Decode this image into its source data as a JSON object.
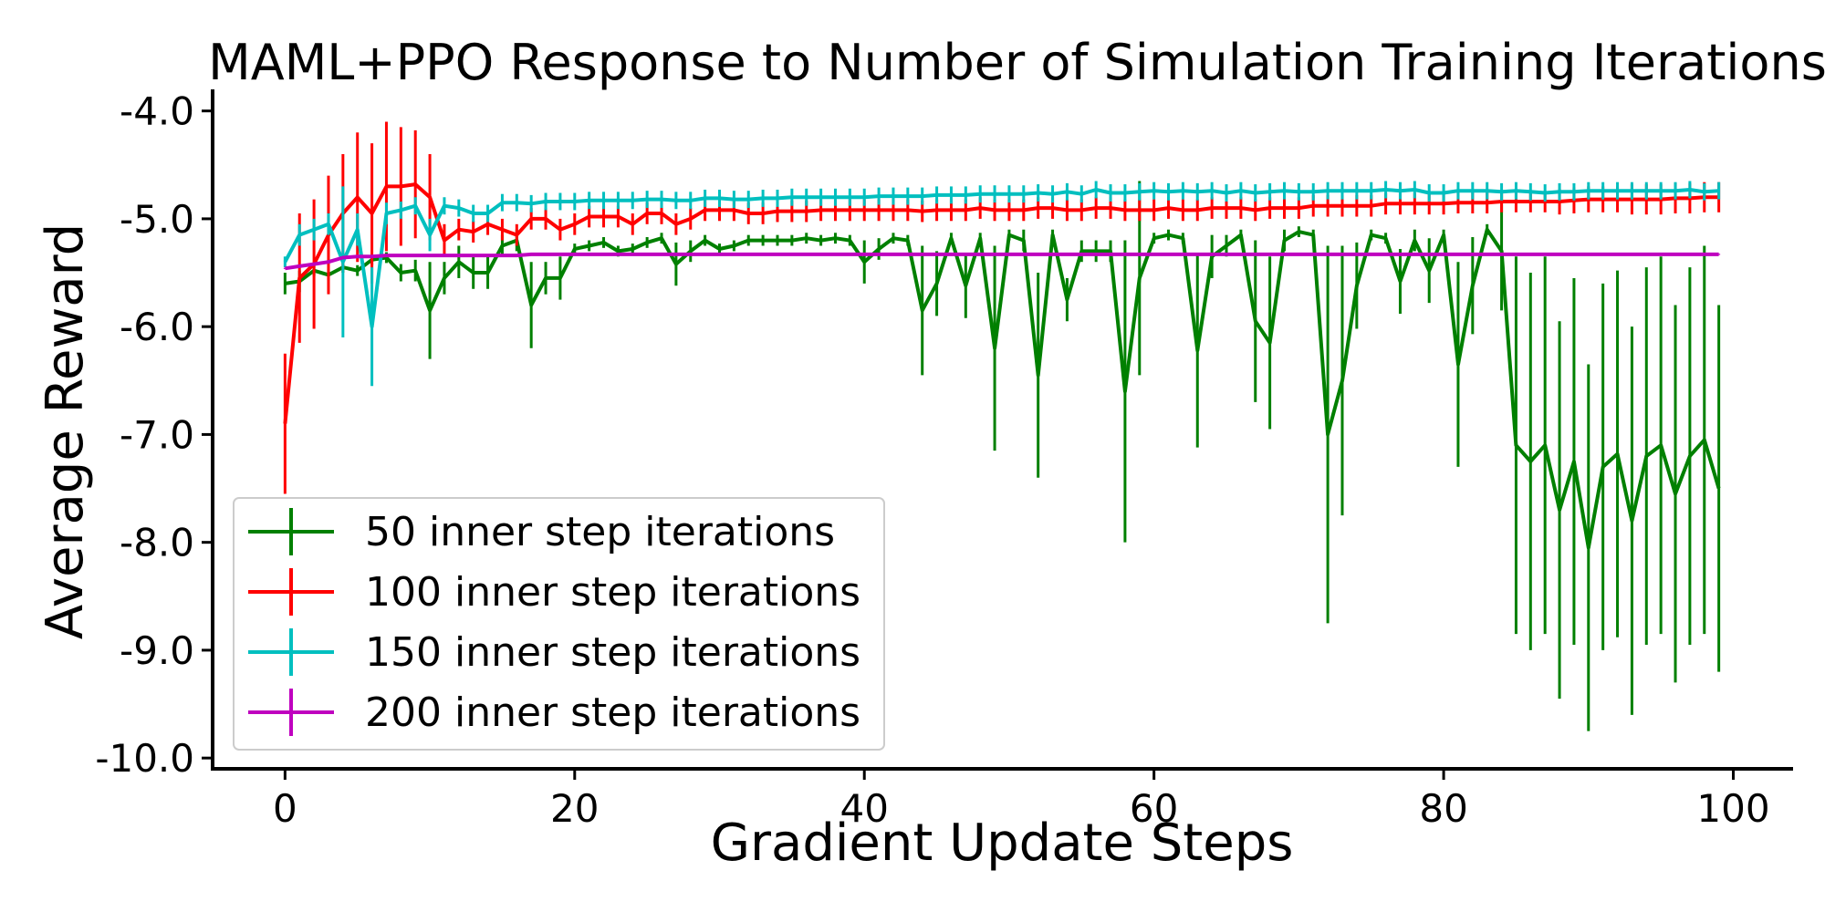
{
  "chart_data": {
    "type": "line",
    "title": "MAML+PPO Response to Number of Simulation Training Iterations",
    "xlabel": "Gradient Update Steps",
    "ylabel": "Average Reward",
    "xlim": [
      -5,
      104
    ],
    "ylim": [
      -10.1,
      -3.8
    ],
    "xticks": [
      0,
      20,
      40,
      60,
      80,
      100
    ],
    "xtick_labels": [
      "0",
      "20",
      "40",
      "60",
      "80",
      "100"
    ],
    "yticks": [
      -4.0,
      -5.0,
      -6.0,
      -7.0,
      -8.0,
      -9.0,
      -10.0
    ],
    "ytick_labels": [
      "-4.0",
      "-5.0",
      "-6.0",
      "-7.0",
      "-8.0",
      "-9.0",
      "-10.0"
    ],
    "legend_position": "lower-left",
    "series": [
      {
        "name": "50 inner step iterations",
        "color": "#008000",
        "values": [
          -5.6,
          -5.58,
          -5.48,
          -5.52,
          -5.45,
          -5.48,
          -5.38,
          -5.36,
          -5.5,
          -5.48,
          -5.85,
          -5.55,
          -5.4,
          -5.5,
          -5.5,
          -5.25,
          -5.2,
          -5.8,
          -5.55,
          -5.55,
          -5.28,
          -5.25,
          -5.22,
          -5.3,
          -5.28,
          -5.22,
          -5.18,
          -5.42,
          -5.3,
          -5.2,
          -5.28,
          -5.25,
          -5.2,
          -5.2,
          -5.2,
          -5.2,
          -5.18,
          -5.2,
          -5.18,
          -5.2,
          -5.4,
          -5.28,
          -5.18,
          -5.2,
          -5.85,
          -5.6,
          -5.18,
          -5.62,
          -5.18,
          -6.2,
          -5.15,
          -5.2,
          -6.45,
          -5.15,
          -5.75,
          -5.3,
          -5.3,
          -5.3,
          -6.6,
          -5.55,
          -5.18,
          -5.15,
          -5.18,
          -6.22,
          -5.35,
          -5.25,
          -5.15,
          -5.95,
          -6.15,
          -5.2,
          -5.12,
          -5.15,
          -7.0,
          -6.5,
          -5.62,
          -5.15,
          -5.18,
          -5.58,
          -5.2,
          -5.48,
          -5.15,
          -6.35,
          -5.62,
          -5.1,
          -5.3,
          -7.1,
          -7.25,
          -7.1,
          -7.7,
          -7.25,
          -8.05,
          -7.3,
          -7.18,
          -7.8,
          -7.2,
          -7.1,
          -7.55,
          -7.2,
          -7.05,
          -7.5
        ],
        "errors": [
          0.1,
          0.1,
          0.05,
          0.05,
          0.05,
          0.05,
          0.05,
          0.05,
          0.08,
          0.1,
          0.45,
          0.15,
          0.15,
          0.15,
          0.15,
          0.1,
          0.1,
          0.4,
          0.15,
          0.2,
          0.05,
          0.05,
          0.05,
          0.05,
          0.05,
          0.05,
          0.05,
          0.2,
          0.1,
          0.05,
          0.05,
          0.05,
          0.05,
          0.05,
          0.05,
          0.05,
          0.05,
          0.05,
          0.05,
          0.05,
          0.2,
          0.1,
          0.05,
          0.05,
          0.6,
          0.3,
          0.05,
          0.3,
          0.05,
          0.95,
          0.05,
          0.1,
          0.95,
          0.05,
          0.2,
          0.1,
          0.1,
          0.1,
          1.4,
          0.9,
          0.05,
          0.05,
          0.05,
          0.9,
          0.2,
          0.1,
          0.05,
          0.75,
          0.8,
          0.1,
          0.05,
          0.05,
          1.75,
          1.25,
          0.4,
          0.05,
          0.05,
          0.3,
          0.1,
          0.3,
          0.05,
          0.95,
          0.45,
          0.05,
          0.55,
          1.75,
          1.75,
          1.75,
          1.75,
          1.7,
          1.7,
          1.7,
          1.7,
          1.8,
          1.75,
          1.75,
          1.75,
          1.75,
          1.8,
          1.7
        ]
      },
      {
        "name": "100 inner step iterations",
        "color": "#ff0000",
        "values": [
          -6.9,
          -5.55,
          -5.42,
          -5.15,
          -4.95,
          -4.8,
          -4.95,
          -4.7,
          -4.7,
          -4.68,
          -4.8,
          -5.2,
          -5.1,
          -5.12,
          -5.05,
          -5.1,
          -5.15,
          -5.0,
          -5.0,
          -5.1,
          -5.05,
          -4.98,
          -4.98,
          -4.98,
          -5.05,
          -4.95,
          -4.95,
          -5.05,
          -5.0,
          -4.92,
          -4.92,
          -4.92,
          -4.95,
          -4.95,
          -4.93,
          -4.93,
          -4.93,
          -4.92,
          -4.92,
          -4.92,
          -4.92,
          -4.92,
          -4.92,
          -4.92,
          -4.93,
          -4.92,
          -4.92,
          -4.92,
          -4.9,
          -4.92,
          -4.92,
          -4.92,
          -4.9,
          -4.9,
          -4.92,
          -4.92,
          -4.9,
          -4.9,
          -4.92,
          -4.92,
          -4.92,
          -4.9,
          -4.92,
          -4.92,
          -4.9,
          -4.9,
          -4.9,
          -4.92,
          -4.9,
          -4.9,
          -4.9,
          -4.88,
          -4.88,
          -4.88,
          -4.88,
          -4.88,
          -4.86,
          -4.86,
          -4.86,
          -4.86,
          -4.86,
          -4.85,
          -4.85,
          -4.85,
          -4.84,
          -4.84,
          -4.84,
          -4.84,
          -4.84,
          -4.83,
          -4.82,
          -4.82,
          -4.82,
          -4.82,
          -4.82,
          -4.82,
          -4.81,
          -4.81,
          -4.8,
          -4.8
        ],
        "errors": [
          0.65,
          0.6,
          0.6,
          0.55,
          0.55,
          0.6,
          0.65,
          0.6,
          0.55,
          0.5,
          0.4,
          0.15,
          0.1,
          0.1,
          0.1,
          0.1,
          0.1,
          0.1,
          0.1,
          0.1,
          0.1,
          0.1,
          0.1,
          0.1,
          0.1,
          0.1,
          0.1,
          0.1,
          0.1,
          0.1,
          0.1,
          0.1,
          0.1,
          0.1,
          0.1,
          0.1,
          0.1,
          0.1,
          0.1,
          0.1,
          0.1,
          0.1,
          0.1,
          0.1,
          0.1,
          0.1,
          0.1,
          0.1,
          0.1,
          0.1,
          0.1,
          0.1,
          0.1,
          0.1,
          0.1,
          0.1,
          0.1,
          0.1,
          0.1,
          0.1,
          0.1,
          0.1,
          0.1,
          0.1,
          0.1,
          0.1,
          0.1,
          0.1,
          0.1,
          0.1,
          0.1,
          0.1,
          0.1,
          0.1,
          0.1,
          0.1,
          0.1,
          0.1,
          0.1,
          0.1,
          0.1,
          0.1,
          0.1,
          0.1,
          0.1,
          0.1,
          0.1,
          0.1,
          0.12,
          0.12,
          0.12,
          0.12,
          0.12,
          0.14,
          0.14,
          0.14,
          0.14,
          0.14,
          0.14,
          0.14
        ]
      },
      {
        "name": "150 inner step iterations",
        "color": "#00bfbf",
        "values": [
          -5.4,
          -5.15,
          -5.1,
          -5.05,
          -5.4,
          -5.1,
          -6.0,
          -4.95,
          -4.92,
          -4.88,
          -5.15,
          -4.88,
          -4.9,
          -4.95,
          -4.95,
          -4.85,
          -4.85,
          -4.86,
          -4.84,
          -4.84,
          -4.84,
          -4.83,
          -4.83,
          -4.83,
          -4.83,
          -4.82,
          -4.82,
          -4.83,
          -4.83,
          -4.81,
          -4.81,
          -4.82,
          -4.82,
          -4.81,
          -4.81,
          -4.8,
          -4.8,
          -4.8,
          -4.8,
          -4.8,
          -4.8,
          -4.79,
          -4.79,
          -4.79,
          -4.79,
          -4.78,
          -4.78,
          -4.78,
          -4.77,
          -4.77,
          -4.77,
          -4.77,
          -4.76,
          -4.77,
          -4.75,
          -4.77,
          -4.73,
          -4.76,
          -4.76,
          -4.75,
          -4.74,
          -4.75,
          -4.74,
          -4.75,
          -4.74,
          -4.76,
          -4.74,
          -4.76,
          -4.75,
          -4.74,
          -4.75,
          -4.75,
          -4.74,
          -4.74,
          -4.74,
          -4.74,
          -4.73,
          -4.74,
          -4.73,
          -4.76,
          -4.76,
          -4.74,
          -4.74,
          -4.74,
          -4.75,
          -4.74,
          -4.75,
          -4.76,
          -4.75,
          -4.75,
          -4.74,
          -4.74,
          -4.74,
          -4.74,
          -4.74,
          -4.74,
          -4.74,
          -4.73,
          -4.75,
          -4.74
        ],
        "errors": [
          0.05,
          0.1,
          0.1,
          0.1,
          0.7,
          0.15,
          0.55,
          0.1,
          0.08,
          0.08,
          0.15,
          0.08,
          0.08,
          0.08,
          0.08,
          0.08,
          0.08,
          0.08,
          0.08,
          0.08,
          0.08,
          0.08,
          0.08,
          0.08,
          0.08,
          0.08,
          0.08,
          0.08,
          0.08,
          0.08,
          0.08,
          0.08,
          0.08,
          0.08,
          0.08,
          0.08,
          0.08,
          0.08,
          0.08,
          0.08,
          0.08,
          0.08,
          0.08,
          0.08,
          0.08,
          0.08,
          0.08,
          0.08,
          0.08,
          0.08,
          0.08,
          0.08,
          0.08,
          0.08,
          0.08,
          0.08,
          0.08,
          0.08,
          0.08,
          0.08,
          0.08,
          0.08,
          0.08,
          0.08,
          0.08,
          0.08,
          0.08,
          0.08,
          0.08,
          0.08,
          0.08,
          0.08,
          0.08,
          0.08,
          0.08,
          0.08,
          0.08,
          0.08,
          0.08,
          0.08,
          0.08,
          0.08,
          0.08,
          0.08,
          0.08,
          0.08,
          0.08,
          0.08,
          0.08,
          0.08,
          0.08,
          0.08,
          0.08,
          0.08,
          0.08,
          0.08,
          0.08,
          0.08,
          0.08,
          0.08
        ]
      },
      {
        "name": "200 inner step iterations",
        "color": "#bf00bf",
        "values": [
          -5.46,
          -5.44,
          -5.42,
          -5.4,
          -5.36,
          -5.35,
          -5.35,
          -5.34,
          -5.34,
          -5.34,
          -5.34,
          -5.34,
          -5.34,
          -5.34,
          -5.34,
          -5.34,
          -5.34,
          -5.33,
          -5.33,
          -5.33,
          -5.33,
          -5.33,
          -5.33,
          -5.33,
          -5.33,
          -5.33,
          -5.33,
          -5.33,
          -5.33,
          -5.33,
          -5.33,
          -5.33,
          -5.33,
          -5.33,
          -5.33,
          -5.33,
          -5.33,
          -5.33,
          -5.33,
          -5.33,
          -5.33,
          -5.33,
          -5.33,
          -5.33,
          -5.33,
          -5.33,
          -5.33,
          -5.33,
          -5.33,
          -5.33,
          -5.33,
          -5.33,
          -5.33,
          -5.33,
          -5.33,
          -5.33,
          -5.33,
          -5.33,
          -5.33,
          -5.33,
          -5.33,
          -5.33,
          -5.33,
          -5.33,
          -5.33,
          -5.33,
          -5.33,
          -5.33,
          -5.33,
          -5.33,
          -5.33,
          -5.33,
          -5.33,
          -5.33,
          -5.33,
          -5.33,
          -5.33,
          -5.33,
          -5.33,
          -5.33,
          -5.33,
          -5.33,
          -5.33,
          -5.33,
          -5.33,
          -5.33,
          -5.33,
          -5.33,
          -5.33,
          -5.33,
          -5.33,
          -5.33,
          -5.33,
          -5.33,
          -5.33,
          -5.33,
          -5.33,
          -5.33,
          -5.33,
          -5.33
        ],
        "errors": [
          0.005,
          0.005,
          0.005,
          0.005,
          0.005,
          0.005,
          0.005,
          0.005,
          0.005,
          0.005,
          0.005,
          0.005,
          0.005,
          0.005,
          0.005,
          0.005,
          0.005,
          0.005,
          0.005,
          0.005,
          0.005,
          0.005,
          0.005,
          0.005,
          0.005,
          0.005,
          0.005,
          0.005,
          0.005,
          0.005,
          0.005,
          0.005,
          0.005,
          0.005,
          0.005,
          0.005,
          0.005,
          0.005,
          0.005,
          0.005,
          0.005,
          0.005,
          0.005,
          0.005,
          0.005,
          0.005,
          0.005,
          0.005,
          0.005,
          0.005,
          0.005,
          0.005,
          0.005,
          0.005,
          0.005,
          0.005,
          0.005,
          0.005,
          0.005,
          0.005,
          0.005,
          0.005,
          0.005,
          0.005,
          0.005,
          0.005,
          0.005,
          0.005,
          0.005,
          0.005,
          0.005,
          0.005,
          0.005,
          0.005,
          0.005,
          0.005,
          0.005,
          0.005,
          0.005,
          0.005,
          0.005,
          0.005,
          0.005,
          0.005,
          0.005,
          0.005,
          0.005,
          0.005,
          0.005,
          0.005,
          0.005,
          0.005,
          0.005,
          0.005,
          0.005,
          0.005,
          0.005,
          0.005,
          0.005,
          0.005
        ]
      }
    ]
  }
}
